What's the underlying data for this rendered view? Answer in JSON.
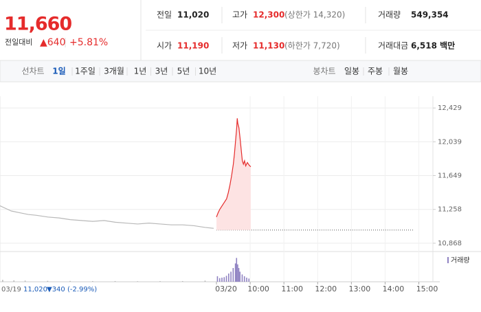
{
  "header": {
    "price": "11,660",
    "change_label": "전일대비",
    "change": "▲640",
    "change_pct": "+5.81%"
  },
  "stats": [
    {
      "label": "전일",
      "value": "11,020"
    },
    {
      "label": "고가",
      "value": "12,300",
      "note": "(상한가 14,320)"
    },
    {
      "label": "거래량",
      "value": "549,354"
    },
    {
      "label": "시가",
      "value": "11,190"
    },
    {
      "label": "저가",
      "value": "11,130",
      "note": "(하한가 7,720)"
    },
    {
      "label": "거래대금",
      "value": "6,518 백만"
    }
  ],
  "tabs": {
    "line_label": "선차트",
    "line_periods": [
      "1일",
      "1주일",
      "3개월",
      "1년",
      "3년",
      "5년",
      "10년"
    ],
    "candle_label": "봉차트",
    "candle_periods": [
      "일봉",
      "주봉",
      "월봉"
    ]
  },
  "chart_data": {
    "type": "line",
    "xlim": [
      -385,
      385
    ],
    "xticks": [
      {
        "value": 0,
        "label": "03/20"
      },
      {
        "value": 60,
        "label": "10:00"
      },
      {
        "value": 120,
        "label": "11:00"
      },
      {
        "value": 180,
        "label": "12:00"
      },
      {
        "value": 240,
        "label": "13:00"
      },
      {
        "value": 300,
        "label": "14:00"
      },
      {
        "value": 360,
        "label": "15:00"
      }
    ],
    "ylim": [
      10780,
      12565
    ],
    "yticks": [
      {
        "value": 12429,
        "label": "12,429"
      },
      {
        "value": 12039,
        "label": "12,039"
      },
      {
        "value": 11649,
        "label": "11,649"
      },
      {
        "value": 11258,
        "label": "11,258"
      },
      {
        "value": 10868,
        "label": "10,868"
      }
    ],
    "grid": true,
    "baseline": 11020,
    "series": [
      {
        "color": "#b8b8b8",
        "x": [
          -385,
          -375,
          -365,
          -350,
          -335,
          -320,
          -300,
          -280,
          -260,
          -240,
          -220,
          -200,
          -180,
          -160,
          -140,
          -120,
          -100,
          -80,
          -60,
          -40,
          -20,
          -5
        ],
        "values": [
          11300,
          11270,
          11240,
          11220,
          11200,
          11190,
          11170,
          11160,
          11140,
          11130,
          11120,
          11130,
          11110,
          11100,
          11090,
          11100,
          11090,
          11080,
          11080,
          11070,
          11050,
          11040
        ]
      },
      {
        "color": "#e52b2b",
        "fill": "#fde3e3",
        "x": [
          0,
          3,
          6,
          10,
          14,
          18,
          21,
          24,
          27,
          30,
          32,
          34,
          36,
          37,
          38,
          40,
          42,
          44,
          46,
          48,
          50,
          52,
          55,
          58,
          61
        ],
        "values": [
          11170,
          11220,
          11260,
          11300,
          11340,
          11380,
          11450,
          11540,
          11650,
          11780,
          11900,
          12050,
          12200,
          12310,
          12250,
          12200,
          12080,
          11950,
          11820,
          11780,
          11820,
          11760,
          11800,
          11770,
          11750
        ]
      }
    ],
    "volume": {
      "name": "거래량",
      "color": "#8f82c2",
      "old_color": "#b8b8b8",
      "ylim": [
        0,
        60000
      ],
      "x": [
        -380,
        -360,
        -340,
        -300,
        -260,
        -220,
        -180,
        -140,
        -100,
        -60,
        -20,
        2,
        6,
        10,
        14,
        18,
        22,
        26,
        30,
        34,
        36,
        38,
        40,
        42,
        46,
        50,
        54,
        58
      ],
      "values": [
        4000,
        3000,
        2500,
        2000,
        1800,
        1500,
        1500,
        1200,
        1400,
        1500,
        2500,
        12000,
        8000,
        9000,
        10000,
        13000,
        18000,
        22000,
        30000,
        40000,
        52000,
        38000,
        30000,
        22000,
        16000,
        12000,
        9000,
        7000
      ]
    },
    "footer": {
      "date": "03/19",
      "close": "11,020",
      "change": "▼340",
      "change_pct": "(-2.99%)"
    }
  }
}
